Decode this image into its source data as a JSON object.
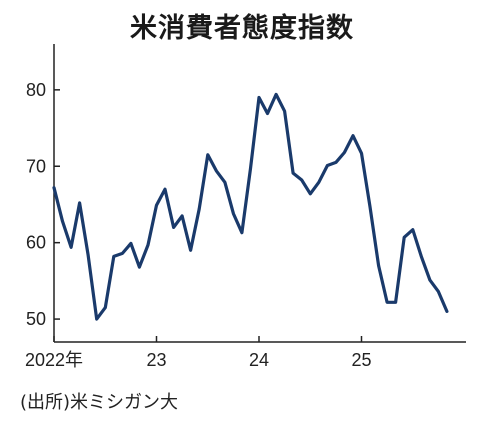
{
  "chart_data": {
    "type": "line",
    "title": "米消費者態度指数",
    "source": "(出所)米ミシガン大",
    "xlabel": "",
    "ylabel": "",
    "ylim": [
      47,
      86
    ],
    "yticks": [
      50,
      60,
      70,
      80
    ],
    "xticks": [
      {
        "label": "2022年",
        "value": 2022.0
      },
      {
        "label": "23",
        "value": 2023.0
      },
      {
        "label": "24",
        "value": 2024.0
      },
      {
        "label": "25",
        "value": 2025.0
      }
    ],
    "grid": false,
    "line_color": "#1a3a6b",
    "series": [
      {
        "x": [
          2022.0,
          2022.083,
          2022.167,
          2022.25,
          2022.333,
          2022.417,
          2022.5,
          2022.583,
          2022.667,
          2022.75,
          2022.833,
          2022.917,
          2023.0,
          2023.083,
          2023.167,
          2023.25,
          2023.333,
          2023.417,
          2023.5,
          2023.583,
          2023.667,
          2023.75,
          2023.833,
          2023.917,
          2024.0,
          2024.083,
          2024.167,
          2024.25,
          2024.333,
          2024.417,
          2024.5,
          2024.583,
          2024.667,
          2024.75,
          2024.833,
          2024.917,
          2025.0,
          2025.083,
          2025.167,
          2025.25,
          2025.333,
          2025.417,
          2025.5,
          2025.583,
          2025.667,
          2025.75,
          2025.833
        ],
        "values": [
          67.2,
          62.8,
          59.4,
          65.2,
          58.4,
          50.0,
          51.5,
          58.2,
          58.6,
          59.9,
          56.8,
          59.7,
          64.9,
          67.0,
          62.0,
          63.5,
          59.0,
          64.4,
          71.5,
          69.4,
          67.9,
          63.8,
          61.3,
          69.7,
          79.0,
          76.9,
          79.4,
          77.2,
          69.1,
          68.2,
          66.4,
          67.9,
          70.1,
          70.5,
          71.8,
          74.0,
          71.7,
          64.7,
          57.0,
          52.2,
          52.2,
          60.7,
          61.7,
          58.2,
          55.1,
          53.6,
          51.0
        ]
      }
    ]
  }
}
